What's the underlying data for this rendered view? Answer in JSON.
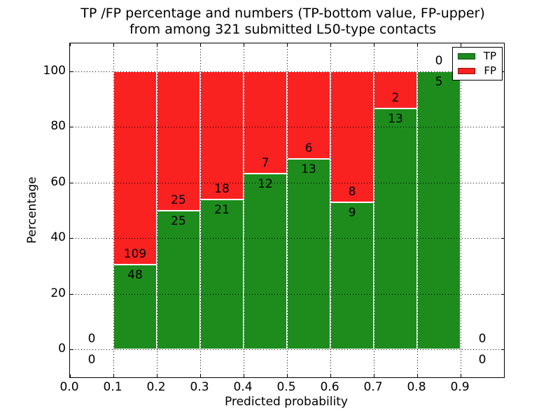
{
  "title": {
    "line1": "TP /FP percentage and numbers (TP-bottom value, FP-upper)",
    "line2": "from among 321 submitted L50-type contacts"
  },
  "axes": {
    "xlabel": "Predicted probability",
    "ylabel": "Percentage",
    "xticks": [
      "0.0",
      "0.1",
      "0.2",
      "0.3",
      "0.4",
      "0.5",
      "0.6",
      "0.7",
      "0.8",
      "0.9"
    ],
    "yticks": [
      "0",
      "20",
      "40",
      "60",
      "80",
      "100"
    ],
    "xlim": [
      0.0,
      1.0
    ],
    "ylim": [
      -10,
      110
    ],
    "grid": "dotted"
  },
  "legend": {
    "position": "upper-right",
    "items": [
      {
        "label": "TP",
        "color": "#1d8c1d"
      },
      {
        "label": "FP",
        "color": "#fa2121"
      }
    ]
  },
  "chart_data": {
    "type": "bar",
    "stacked": true,
    "normalized_to_percent": 100,
    "title": "TP /FP percentage and numbers (TP-bottom value, FP-upper) from among 321 submitted L50-type contacts",
    "xlabel": "Predicted probability",
    "ylabel": "Percentage",
    "total_contacts": 321,
    "bin_width": 0.1,
    "bins": [
      {
        "range": [
          0.0,
          0.1
        ],
        "tp": 0,
        "fp": 0
      },
      {
        "range": [
          0.1,
          0.2
        ],
        "tp": 48,
        "fp": 109
      },
      {
        "range": [
          0.2,
          0.3
        ],
        "tp": 25,
        "fp": 25
      },
      {
        "range": [
          0.3,
          0.4
        ],
        "tp": 21,
        "fp": 18
      },
      {
        "range": [
          0.4,
          0.5
        ],
        "tp": 12,
        "fp": 7
      },
      {
        "range": [
          0.5,
          0.6
        ],
        "tp": 13,
        "fp": 6
      },
      {
        "range": [
          0.6,
          0.7
        ],
        "tp": 9,
        "fp": 8
      },
      {
        "range": [
          0.7,
          0.8
        ],
        "tp": 13,
        "fp": 2
      },
      {
        "range": [
          0.8,
          0.9
        ],
        "tp": 5,
        "fp": 0
      },
      {
        "range": [
          0.9,
          1.0
        ],
        "tp": 0,
        "fp": 0
      }
    ],
    "series": [
      {
        "name": "TP",
        "color": "#1d8c1d",
        "values": [
          0,
          48,
          25,
          21,
          12,
          13,
          9,
          13,
          5,
          0
        ]
      },
      {
        "name": "FP",
        "color": "#fa2121",
        "values": [
          0,
          109,
          25,
          18,
          7,
          6,
          8,
          2,
          0,
          0
        ]
      }
    ]
  }
}
